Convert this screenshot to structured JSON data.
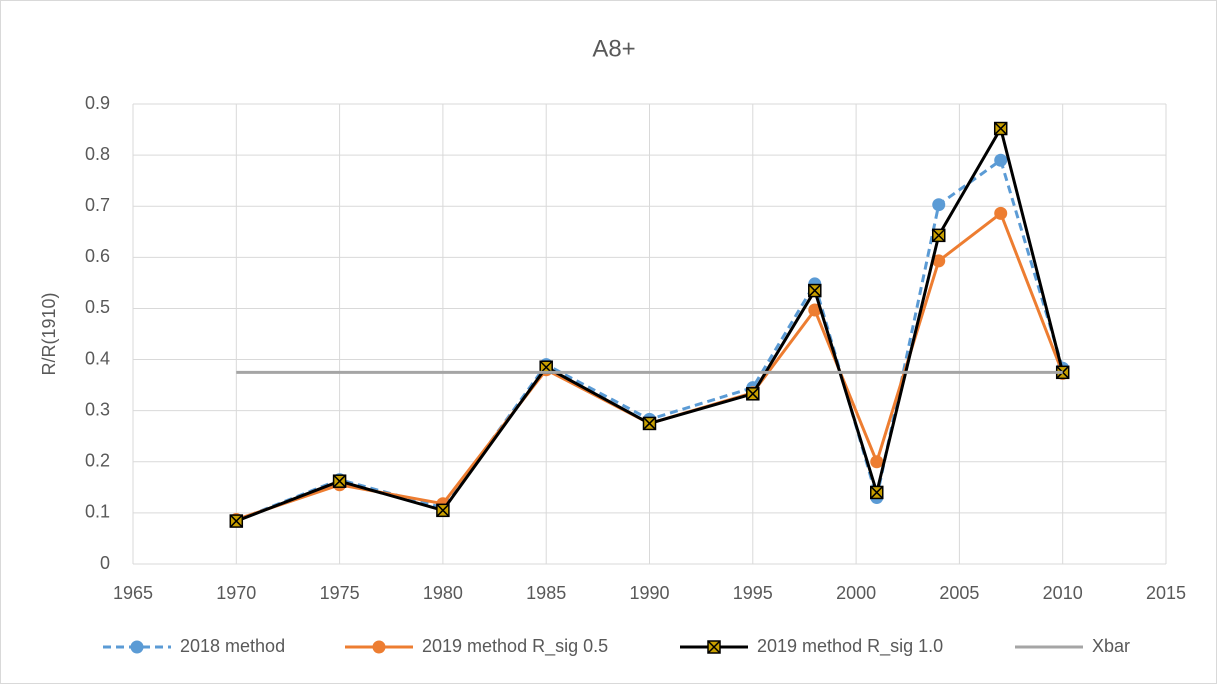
{
  "chart_data": {
    "type": "line",
    "title": "A8+",
    "y_label": "R/R(1910)",
    "x": [
      1970,
      1975,
      1980,
      1985,
      1990,
      1995,
      1998,
      2001,
      2004,
      2007,
      2010
    ],
    "xlim": [
      1965,
      2015
    ],
    "xticks": [
      1965,
      1970,
      1975,
      1980,
      1985,
      1990,
      1995,
      2000,
      2005,
      2010,
      2015
    ],
    "ylim": [
      0,
      0.9
    ],
    "yticks": [
      0,
      0.1,
      0.2,
      0.3,
      0.4,
      0.5,
      0.6,
      0.7,
      0.8,
      0.9
    ],
    "grid": true,
    "legend": "bottom",
    "series": [
      {
        "name": "2018 method",
        "color": "#5b9bd5",
        "dashed": true,
        "marker": "circle",
        "values": [
          0.085,
          0.165,
          0.11,
          0.39,
          0.283,
          0.345,
          0.548,
          0.13,
          0.703,
          0.79,
          0.383
        ]
      },
      {
        "name": "2019 method R_sig 0.5",
        "color": "#ed7d31",
        "dashed": false,
        "marker": "circle",
        "values": [
          0.087,
          0.155,
          0.118,
          0.38,
          0.275,
          0.335,
          0.497,
          0.2,
          0.593,
          0.686,
          0.373
        ]
      },
      {
        "name": "2019 method R_sig 1.0",
        "color": "#000000",
        "dashed": false,
        "marker": "square-x",
        "values": [
          0.084,
          0.162,
          0.105,
          0.385,
          0.275,
          0.333,
          0.535,
          0.14,
          0.643,
          0.852,
          0.375
        ]
      },
      {
        "name": "Xbar",
        "color": "#a5a5a5",
        "dashed": false,
        "marker": "none",
        "values": [
          0.375,
          0.375,
          0.375,
          0.375,
          0.375,
          0.375,
          0.375,
          0.375,
          0.375,
          0.375,
          0.375
        ]
      }
    ]
  }
}
